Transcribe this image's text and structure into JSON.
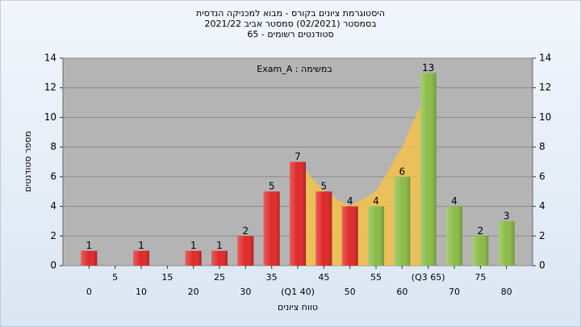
{
  "chart_data": {
    "type": "bar",
    "title": [
      "היסטוגרמת ציונים בקורס - מבוא למכניקה הנדסית",
      "בסמסטר (02/2021) סמסטר אביב 2021/22",
      "סטודנטים רשומים - 65"
    ],
    "annotation": "במשימה : Exam_A",
    "x_label": "טווח ציונים",
    "y_label": "מספר סטודנטים",
    "xlim": [
      -5,
      85
    ],
    "xticks": [
      0,
      5,
      10,
      15,
      20,
      25,
      30,
      35,
      {
        "value": 40,
        "label": "(Q1 40)"
      },
      45,
      50,
      55,
      60,
      {
        "value": 65,
        "label": "(Q3 65)"
      },
      70,
      75,
      80
    ],
    "ylim": [
      0,
      14
    ],
    "yticks": [
      0,
      2,
      4,
      6,
      8,
      10,
      12,
      14
    ],
    "y2lim": [
      0,
      14
    ],
    "y2ticks": [
      0,
      2,
      4,
      6,
      8,
      10,
      12,
      14
    ],
    "grid": true,
    "trend": {
      "color": "#f5c24a",
      "x": [
        40,
        45,
        50,
        55,
        60,
        65
      ],
      "values": [
        7,
        5,
        4,
        5,
        8,
        12
      ]
    },
    "series": [
      {
        "color": "#e02828",
        "x": [
          0,
          10,
          20,
          25,
          30,
          35,
          40,
          45,
          50
        ],
        "values": [
          1,
          1,
          1,
          1,
          2,
          5,
          7,
          5,
          4
        ]
      },
      {
        "color": "#8cbc48",
        "x": [
          55,
          60,
          65,
          70,
          75,
          80
        ],
        "values": [
          4,
          6,
          13,
          4,
          2,
          3
        ]
      }
    ]
  }
}
